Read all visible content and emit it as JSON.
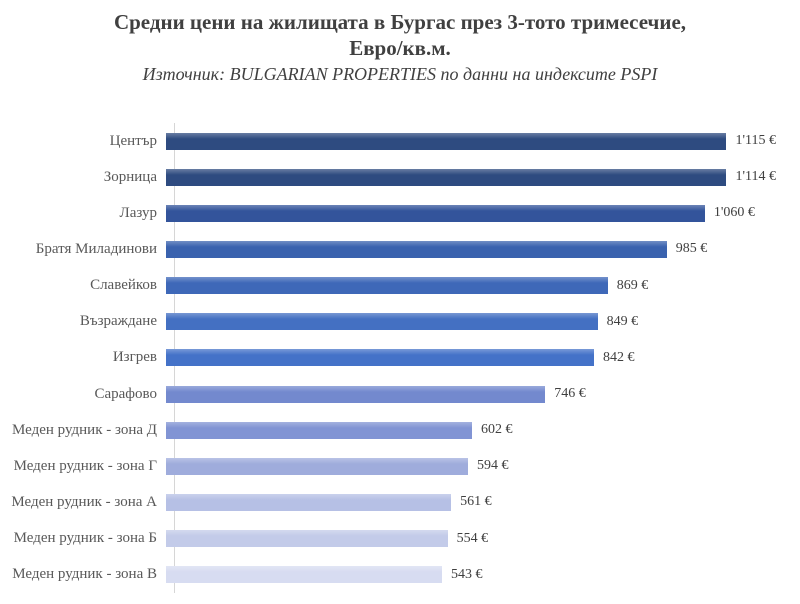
{
  "header": {
    "title_line1": "Средни цени на жилищата в Бургас през 3-тото тримесечие,",
    "title_line2": "Евро/кв.м.",
    "subtitle": "Източник: BULGARIAN PROPERTIES по данни на индексите PSPI"
  },
  "chart_data": {
    "type": "bar",
    "orientation": "horizontal",
    "title": "Средни цени на жилищата в Бургас през 3-тото тримесечие, Евро/кв.м.",
    "subtitle": "Източник: BULGARIAN PROPERTIES по данни на индексите PSPI",
    "categories": [
      "Център",
      "Зорница",
      "Лазур",
      "Братя Миладинови",
      "Славейков",
      "Възраждане",
      "Изгрев",
      "Сарафово",
      "Меден рудник - зона Д",
      "Меден рудник - зона Г",
      "Меден рудник - зона А",
      "Меден рудник - зона Б",
      "Меден рудник - зона В"
    ],
    "values": [
      1115,
      1114,
      1060,
      985,
      869,
      849,
      842,
      746,
      602,
      594,
      561,
      554,
      543
    ],
    "value_labels": [
      "1'115 €",
      "1'114 €",
      "1'060 €",
      "985 €",
      "869 €",
      "849 €",
      "842 €",
      "746 €",
      "602 €",
      "594 €",
      "561 €",
      "554 €",
      "543 €"
    ],
    "unit": "Евро/кв.м.",
    "xlim": [
      0,
      1200
    ],
    "grid": false,
    "legend": false,
    "bar_colors": [
      "#2E4B80",
      "#2E4B80",
      "#33549B",
      "#3A62AE",
      "#3E68B8",
      "#4470C2",
      "#4472C8",
      "#7389CE",
      "#8194D4",
      "#9FACDC",
      "#B6C0E5",
      "#C3CBE9",
      "#D7DCF1"
    ],
    "colors": {
      "axis_line": "#D6D6D6",
      "title_text": "#404040",
      "category_text": "#595959",
      "value_text": "#404040",
      "background": "#FFFFFF"
    }
  }
}
